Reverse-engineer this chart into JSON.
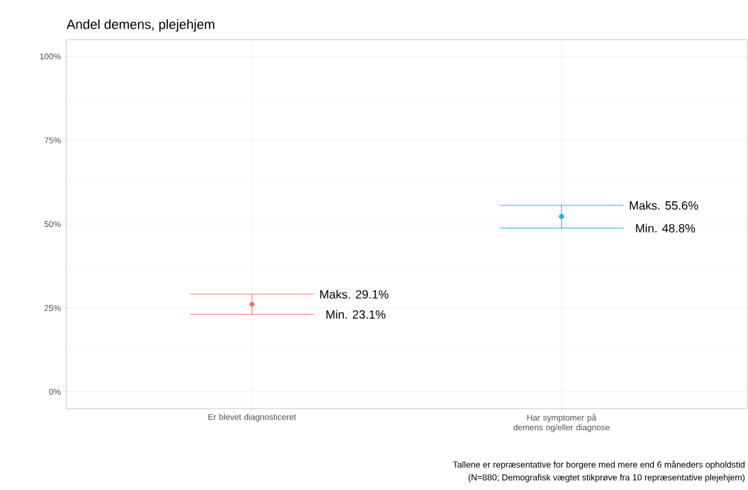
{
  "chart_data": {
    "type": "scatter",
    "title": "Andel demens, plejehjem",
    "categories": [
      "Er blevet diagnosticeret",
      "Har symptomer på demens og/eller diagnose"
    ],
    "values": [
      26.1,
      52.3
    ],
    "colors": [
      "#f8766d",
      "#00bfc4"
    ],
    "errors": [
      [
        23.1,
        29.1
      ],
      [
        48.8,
        55.6
      ]
    ],
    "ylim": [
      -5,
      105
    ],
    "yticks": [
      {
        "value": 0,
        "label": "0%"
      },
      {
        "value": 25,
        "label": "25%"
      },
      {
        "value": 50,
        "label": "50%"
      },
      {
        "value": 75,
        "label": "75%"
      },
      {
        "value": 100,
        "label": "100%"
      }
    ],
    "grid": true,
    "annotations": [
      "Maks. 29.1%",
      "Min. 23.1%",
      "Maks. 55.6%",
      "Min. 48.8%",
      "Tallene er repræsentative for borgere med mere end 6 måneders opholdstid",
      "(N=880; Demografisk vægtet stikprøve fra 10 repræsentative plejehjem)"
    ]
  }
}
